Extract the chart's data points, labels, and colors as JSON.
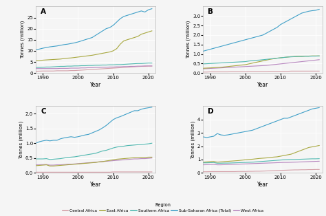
{
  "years": [
    1988,
    1989,
    1990,
    1991,
    1992,
    1993,
    1994,
    1995,
    1996,
    1997,
    1998,
    1999,
    2000,
    2001,
    2002,
    2003,
    2004,
    2005,
    2006,
    2007,
    2008,
    2009,
    2010,
    2011,
    2012,
    2013,
    2014,
    2015,
    2016,
    2017,
    2018,
    2019,
    2020,
    2021
  ],
  "ylabel": "Tonnes (million)",
  "xlabel": "Year",
  "background_color": "#f5f5f5",
  "plot_bg": "#f5f5f5",
  "grid_color": "#ffffff",
  "colors": {
    "Central Africa": "#d4a0a8",
    "East Africa": "#a8a840",
    "Southern Africa": "#50b8b0",
    "Sub-Saharan Africa (Total)": "#40a0c8",
    "West Africa": "#b888c0"
  },
  "legend_title": "Region",
  "panel_A": {
    "Central Africa": [
      0.8,
      0.85,
      0.9,
      0.9,
      0.9,
      0.9,
      1.0,
      1.0,
      1.0,
      1.0,
      1.1,
      1.1,
      1.2,
      1.3,
      1.4,
      1.5,
      1.6,
      1.7,
      1.8,
      1.9,
      2.0,
      2.1,
      2.2,
      2.3,
      2.4,
      2.5,
      2.6,
      2.7,
      2.8,
      2.9,
      3.0,
      3.0,
      3.1,
      3.1
    ],
    "East Africa": [
      5.5,
      5.6,
      5.8,
      5.9,
      6.0,
      6.1,
      6.2,
      6.3,
      6.5,
      6.7,
      6.8,
      7.0,
      7.2,
      7.4,
      7.6,
      7.8,
      8.0,
      8.3,
      8.6,
      8.9,
      9.2,
      9.5,
      10.0,
      11.0,
      13.0,
      14.5,
      15.0,
      15.5,
      16.0,
      16.5,
      17.5,
      18.0,
      18.5,
      19.0
    ],
    "Sub-Saharan Africa (Total)": [
      10.5,
      10.8,
      11.2,
      11.5,
      11.8,
      12.0,
      12.2,
      12.5,
      12.8,
      13.0,
      13.3,
      13.6,
      14.0,
      14.5,
      15.0,
      15.5,
      16.0,
      17.0,
      18.0,
      19.0,
      20.0,
      20.5,
      21.5,
      23.0,
      24.5,
      25.5,
      26.0,
      26.5,
      27.0,
      27.5,
      28.0,
      27.5,
      28.5,
      29.0
    ],
    "Southern Africa": [
      2.5,
      2.5,
      2.6,
      2.7,
      2.7,
      2.8,
      2.9,
      3.0,
      3.0,
      3.1,
      3.1,
      3.2,
      3.2,
      3.3,
      3.3,
      3.4,
      3.4,
      3.5,
      3.5,
      3.6,
      3.6,
      3.7,
      3.7,
      3.8,
      3.8,
      3.9,
      4.0,
      4.1,
      4.2,
      4.3,
      4.3,
      4.4,
      4.5,
      4.5
    ],
    "West Africa": [
      2.0,
      2.0,
      2.0,
      2.0,
      2.0,
      2.0,
      2.0,
      2.1,
      2.1,
      2.1,
      2.2,
      2.2,
      2.2,
      2.3,
      2.3,
      2.4,
      2.4,
      2.5,
      2.5,
      2.6,
      2.6,
      2.7,
      2.7,
      2.8,
      2.8,
      2.9,
      2.9,
      3.0,
      3.0,
      3.1,
      3.1,
      3.2,
      3.2,
      3.2
    ]
  },
  "panel_B": {
    "Central Africa": [
      0.05,
      0.05,
      0.06,
      0.06,
      0.06,
      0.06,
      0.06,
      0.06,
      0.07,
      0.07,
      0.07,
      0.07,
      0.07,
      0.08,
      0.08,
      0.08,
      0.08,
      0.08,
      0.08,
      0.09,
      0.09,
      0.09,
      0.09,
      0.09,
      0.09,
      0.1,
      0.1,
      0.1,
      0.1,
      0.1,
      0.1,
      0.1,
      0.1,
      0.1
    ],
    "East Africa": [
      0.25,
      0.26,
      0.27,
      0.28,
      0.29,
      0.3,
      0.32,
      0.34,
      0.36,
      0.38,
      0.4,
      0.42,
      0.44,
      0.48,
      0.52,
      0.56,
      0.6,
      0.64,
      0.68,
      0.72,
      0.75,
      0.78,
      0.8,
      0.82,
      0.84,
      0.86,
      0.87,
      0.88,
      0.88,
      0.89,
      0.89,
      0.9,
      0.9,
      0.9
    ],
    "Sub-Saharan Africa (Total)": [
      1.15,
      1.2,
      1.25,
      1.3,
      1.35,
      1.4,
      1.45,
      1.5,
      1.55,
      1.6,
      1.65,
      1.7,
      1.75,
      1.8,
      1.85,
      1.9,
      1.95,
      2.0,
      2.1,
      2.2,
      2.3,
      2.4,
      2.55,
      2.65,
      2.75,
      2.85,
      2.95,
      3.05,
      3.15,
      3.2,
      3.25,
      3.28,
      3.3,
      3.35
    ],
    "Southern Africa": [
      0.48,
      0.49,
      0.5,
      0.51,
      0.52,
      0.53,
      0.54,
      0.55,
      0.56,
      0.57,
      0.58,
      0.59,
      0.6,
      0.63,
      0.65,
      0.67,
      0.68,
      0.7,
      0.72,
      0.74,
      0.76,
      0.78,
      0.8,
      0.82,
      0.84,
      0.85,
      0.86,
      0.87,
      0.87,
      0.88,
      0.88,
      0.89,
      0.89,
      0.9
    ],
    "West Africa": [
      0.22,
      0.23,
      0.24,
      0.25,
      0.26,
      0.27,
      0.28,
      0.29,
      0.3,
      0.31,
      0.32,
      0.33,
      0.34,
      0.35,
      0.36,
      0.37,
      0.38,
      0.39,
      0.4,
      0.42,
      0.44,
      0.46,
      0.48,
      0.5,
      0.52,
      0.54,
      0.56,
      0.58,
      0.6,
      0.62,
      0.64,
      0.66,
      0.68,
      0.7
    ]
  },
  "panel_C": {
    "Central Africa": [
      0.02,
      0.02,
      0.02,
      0.02,
      0.02,
      0.02,
      0.02,
      0.02,
      0.02,
      0.02,
      0.02,
      0.02,
      0.02,
      0.02,
      0.02,
      0.02,
      0.02,
      0.02,
      0.02,
      0.02,
      0.02,
      0.02,
      0.03,
      0.03,
      0.03,
      0.03,
      0.03,
      0.03,
      0.03,
      0.03,
      0.03,
      0.03,
      0.03,
      0.03
    ],
    "East Africa": [
      0.24,
      0.25,
      0.26,
      0.27,
      0.23,
      0.23,
      0.24,
      0.25,
      0.26,
      0.27,
      0.28,
      0.29,
      0.3,
      0.31,
      0.32,
      0.33,
      0.34,
      0.35,
      0.37,
      0.38,
      0.4,
      0.42,
      0.44,
      0.46,
      0.47,
      0.48,
      0.49,
      0.5,
      0.51,
      0.51,
      0.52,
      0.52,
      0.53,
      0.53
    ],
    "Sub-Saharan Africa (Total)": [
      1.0,
      1.05,
      1.08,
      1.1,
      1.08,
      1.1,
      1.1,
      1.15,
      1.18,
      1.2,
      1.22,
      1.2,
      1.22,
      1.25,
      1.28,
      1.3,
      1.35,
      1.4,
      1.45,
      1.52,
      1.6,
      1.7,
      1.8,
      1.86,
      1.9,
      1.95,
      2.0,
      2.05,
      2.1,
      2.1,
      2.15,
      2.18,
      2.2,
      2.22
    ],
    "Southern Africa": [
      0.47,
      0.47,
      0.47,
      0.48,
      0.45,
      0.46,
      0.47,
      0.48,
      0.5,
      0.52,
      0.53,
      0.54,
      0.56,
      0.58,
      0.6,
      0.62,
      0.64,
      0.66,
      0.7,
      0.74,
      0.76,
      0.8,
      0.84,
      0.87,
      0.89,
      0.9,
      0.92,
      0.93,
      0.94,
      0.95,
      0.96,
      0.97,
      0.98,
      1.0
    ],
    "West Africa": [
      0.27,
      0.27,
      0.28,
      0.28,
      0.26,
      0.26,
      0.27,
      0.27,
      0.28,
      0.29,
      0.29,
      0.3,
      0.31,
      0.32,
      0.33,
      0.34,
      0.35,
      0.36,
      0.37,
      0.38,
      0.39,
      0.4,
      0.41,
      0.42,
      0.43,
      0.44,
      0.45,
      0.46,
      0.47,
      0.47,
      0.48,
      0.48,
      0.49,
      0.5
    ]
  },
  "panel_D": {
    "Central Africa": [
      0.08,
      0.08,
      0.09,
      0.09,
      0.09,
      0.09,
      0.09,
      0.09,
      0.09,
      0.09,
      0.1,
      0.1,
      0.1,
      0.11,
      0.11,
      0.12,
      0.12,
      0.13,
      0.14,
      0.15,
      0.16,
      0.17,
      0.18,
      0.19,
      0.2,
      0.21,
      0.22,
      0.22,
      0.23,
      0.23,
      0.24,
      0.24,
      0.25,
      0.25
    ],
    "East Africa": [
      0.8,
      0.82,
      0.84,
      0.85,
      0.8,
      0.82,
      0.84,
      0.86,
      0.88,
      0.9,
      0.92,
      0.95,
      0.98,
      1.0,
      1.02,
      1.05,
      1.08,
      1.1,
      1.12,
      1.15,
      1.18,
      1.2,
      1.25,
      1.3,
      1.35,
      1.4,
      1.5,
      1.6,
      1.7,
      1.8,
      1.9,
      1.95,
      2.0,
      2.05
    ],
    "Sub-Saharan Africa (Total)": [
      2.7,
      2.65,
      2.7,
      2.75,
      2.95,
      2.85,
      2.82,
      2.85,
      2.9,
      2.95,
      3.0,
      3.05,
      3.1,
      3.15,
      3.2,
      3.3,
      3.4,
      3.5,
      3.6,
      3.7,
      3.8,
      3.9,
      4.0,
      4.1,
      4.1,
      4.2,
      4.3,
      4.4,
      4.5,
      4.6,
      4.7,
      4.8,
      4.85,
      4.9
    ],
    "Southern Africa": [
      0.75,
      0.75,
      0.76,
      0.77,
      0.72,
      0.72,
      0.73,
      0.73,
      0.74,
      0.75,
      0.76,
      0.77,
      0.78,
      0.79,
      0.8,
      0.82,
      0.84,
      0.86,
      0.88,
      0.9,
      0.92,
      0.94,
      0.96,
      0.98,
      0.99,
      1.0,
      1.0,
      1.01,
      1.02,
      1.03,
      1.04,
      1.05,
      1.05,
      1.06
    ],
    "West Africa": [
      0.6,
      0.61,
      0.62,
      0.63,
      0.6,
      0.6,
      0.61,
      0.62,
      0.63,
      0.64,
      0.65,
      0.66,
      0.67,
      0.68,
      0.69,
      0.7,
      0.71,
      0.72,
      0.73,
      0.74,
      0.75,
      0.76,
      0.77,
      0.78,
      0.78,
      0.79,
      0.8,
      0.81,
      0.82,
      0.83,
      0.84,
      0.85,
      0.86,
      0.87
    ]
  },
  "xlim": [
    1988,
    2022
  ],
  "xticks": [
    1990,
    2000,
    2010,
    2020
  ],
  "panel_ylims": {
    "A": [
      0,
      30
    ],
    "B": [
      0,
      3.5
    ],
    "C": [
      0.0,
      2.25
    ],
    "D": [
      0,
      5
    ]
  },
  "panel_yticks": {
    "A": [
      0,
      5,
      10,
      15,
      20,
      25
    ],
    "B": [
      0.0,
      0.5,
      1.0,
      1.5,
      2.0,
      2.5,
      3.0
    ],
    "C": [
      0.0,
      0.5,
      1.0,
      1.5,
      2.0
    ],
    "D": [
      0,
      1,
      2,
      3,
      4
    ]
  }
}
